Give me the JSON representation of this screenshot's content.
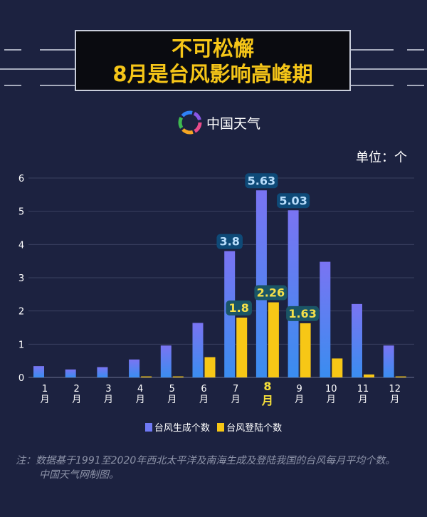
{
  "header": {
    "title_line1": "不可松懈",
    "title_line2": "8月是台风影响高峰期",
    "brand": "中国天气",
    "unit": "单位：个"
  },
  "colors": {
    "background": "#1c2240",
    "blue": "#6f79f5",
    "yellow": "#f7c716",
    "title": "#f5c518"
  },
  "chart_data": {
    "type": "bar",
    "title": "不可松懈 8月是台风影响高峰期",
    "ylabel": "单位：个",
    "ylim": [
      0,
      6
    ],
    "yticks": [
      "0",
      "1",
      "2",
      "3",
      "4",
      "5",
      "6"
    ],
    "grid": true,
    "legend_position": "bottom-center",
    "highlight_category": "8",
    "categories": [
      "1",
      "2",
      "3",
      "4",
      "5",
      "6",
      "7",
      "8",
      "9",
      "10",
      "11",
      "12"
    ],
    "category_suffix": "月",
    "series": [
      {
        "name": "台风生成个数",
        "color": "#6f79f5",
        "values": [
          0.34,
          0.24,
          0.31,
          0.54,
          0.96,
          1.64,
          3.8,
          5.63,
          5.03,
          3.48,
          2.21,
          0.96
        ],
        "labels": {
          "6": "3.8",
          "7": "5.63",
          "8": "5.03"
        }
      },
      {
        "name": "台风登陆个数",
        "color": "#f7c716",
        "values": [
          0,
          0,
          0,
          0.03,
          0.03,
          0.61,
          1.8,
          2.26,
          1.63,
          0.57,
          0.09,
          0.03
        ],
        "labels": {
          "6": "1.8",
          "7": "2.26",
          "8": "1.63"
        }
      }
    ]
  },
  "footer": {
    "note_line1": "注：数据基于1991至2020年西北太平洋及南海生成及登陆我国的台风每月平均个数。",
    "note_line2": "中国天气网制图。"
  }
}
